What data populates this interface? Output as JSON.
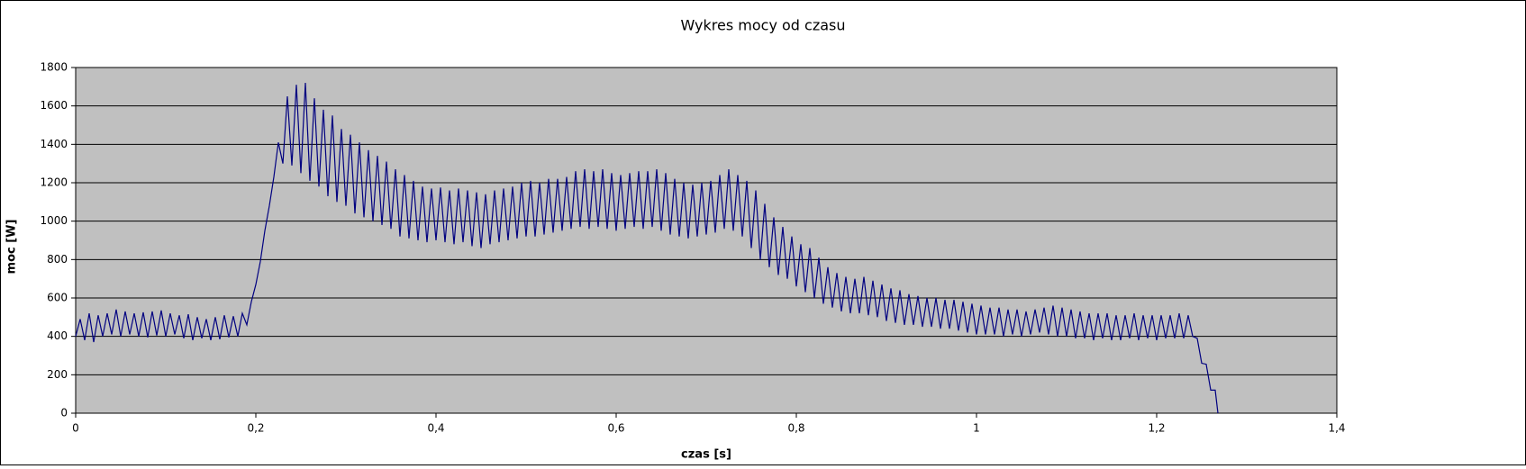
{
  "chart_data": {
    "type": "line",
    "title": "Wykres mocy od czasu",
    "x_label": "czas [s]",
    "y_label": "moc [W]",
    "color": "#000080",
    "grid": true,
    "background": "#c0c0c0",
    "xlim": [
      0,
      1.4
    ],
    "ylim": [
      0,
      1800
    ],
    "xticks": [
      0,
      {
        "value": 0.2,
        "label": "0,2"
      },
      {
        "value": 0.4,
        "label": "0,4"
      },
      {
        "value": 0.6,
        "label": "0,6"
      },
      {
        "value": 0.8,
        "label": "0,8"
      },
      1,
      {
        "value": 1.2,
        "label": "1,2"
      },
      {
        "value": 1.4,
        "label": "1,4"
      }
    ],
    "yticks": [
      0,
      200,
      400,
      600,
      800,
      1000,
      1200,
      1400,
      1600,
      1800
    ],
    "x": [
      0,
      0.005,
      0.01,
      0.015,
      0.02,
      0.025,
      0.03,
      0.035,
      0.04,
      0.045,
      0.05,
      0.055,
      0.06,
      0.065,
      0.07,
      0.075,
      0.08,
      0.085,
      0.09,
      0.095,
      0.1,
      0.105,
      0.11,
      0.115,
      0.12,
      0.125,
      0.13,
      0.135,
      0.14,
      0.145,
      0.15,
      0.155,
      0.16,
      0.165,
      0.17,
      0.175,
      0.18,
      0.185,
      0.19,
      0.195,
      0.2,
      0.205,
      0.21,
      0.215,
      0.22,
      0.225,
      0.23,
      0.235,
      0.24,
      0.245,
      0.25,
      0.255,
      0.26,
      0.265,
      0.27,
      0.275,
      0.28,
      0.285,
      0.29,
      0.295,
      0.3,
      0.305,
      0.31,
      0.315,
      0.32,
      0.325,
      0.33,
      0.335,
      0.34,
      0.345,
      0.35,
      0.355,
      0.36,
      0.365,
      0.37,
      0.375,
      0.38,
      0.385,
      0.39,
      0.395,
      0.4,
      0.405,
      0.41,
      0.415,
      0.42,
      0.425,
      0.43,
      0.435,
      0.44,
      0.445,
      0.45,
      0.455,
      0.46,
      0.465,
      0.47,
      0.475,
      0.48,
      0.485,
      0.49,
      0.495,
      0.5,
      0.505,
      0.51,
      0.515,
      0.52,
      0.525,
      0.53,
      0.535,
      0.54,
      0.545,
      0.55,
      0.555,
      0.56,
      0.565,
      0.57,
      0.575,
      0.58,
      0.585,
      0.59,
      0.595,
      0.6,
      0.605,
      0.61,
      0.615,
      0.62,
      0.625,
      0.63,
      0.635,
      0.64,
      0.645,
      0.65,
      0.655,
      0.66,
      0.665,
      0.67,
      0.675,
      0.68,
      0.685,
      0.69,
      0.695,
      0.7,
      0.705,
      0.71,
      0.715,
      0.72,
      0.725,
      0.73,
      0.735,
      0.74,
      0.745,
      0.75,
      0.755,
      0.76,
      0.765,
      0.77,
      0.775,
      0.78,
      0.785,
      0.79,
      0.795,
      0.8,
      0.805,
      0.81,
      0.815,
      0.82,
      0.825,
      0.83,
      0.835,
      0.84,
      0.845,
      0.85,
      0.855,
      0.86,
      0.865,
      0.87,
      0.875,
      0.88,
      0.885,
      0.89,
      0.895,
      0.9,
      0.905,
      0.91,
      0.915,
      0.92,
      0.925,
      0.93,
      0.935,
      0.94,
      0.945,
      0.95,
      0.955,
      0.96,
      0.965,
      0.97,
      0.975,
      0.98,
      0.985,
      0.99,
      0.995,
      1,
      1.005,
      1.01,
      1.015,
      1.02,
      1.025,
      1.03,
      1.035,
      1.04,
      1.045,
      1.05,
      1.055,
      1.06,
      1.065,
      1.07,
      1.075,
      1.08,
      1.085,
      1.09,
      1.095,
      1.1,
      1.105,
      1.11,
      1.115,
      1.12,
      1.125,
      1.13,
      1.135,
      1.14,
      1.145,
      1.15,
      1.155,
      1.16,
      1.165,
      1.17,
      1.175,
      1.18,
      1.185,
      1.19,
      1.195,
      1.2,
      1.205,
      1.21,
      1.215,
      1.22,
      1.225,
      1.23,
      1.235,
      1.24,
      1.245,
      1.25,
      1.255,
      1.26,
      1.265,
      1.268
    ],
    "values": [
      400,
      490,
      380,
      520,
      370,
      510,
      400,
      520,
      410,
      540,
      400,
      530,
      410,
      520,
      400,
      525,
      395,
      530,
      405,
      535,
      400,
      520,
      410,
      510,
      390,
      515,
      380,
      500,
      390,
      490,
      380,
      500,
      385,
      510,
      395,
      505,
      400,
      520,
      460,
      580,
      670,
      790,
      950,
      1080,
      1230,
      1410,
      1300,
      1650,
      1290,
      1710,
      1250,
      1720,
      1210,
      1640,
      1180,
      1580,
      1130,
      1550,
      1100,
      1480,
      1080,
      1450,
      1040,
      1410,
      1020,
      1370,
      1000,
      1340,
      980,
      1310,
      960,
      1270,
      920,
      1240,
      910,
      1210,
      900,
      1180,
      890,
      1170,
      900,
      1175,
      890,
      1160,
      880,
      1170,
      890,
      1160,
      870,
      1150,
      860,
      1140,
      880,
      1160,
      890,
      1170,
      900,
      1180,
      910,
      1200,
      920,
      1210,
      920,
      1200,
      930,
      1220,
      940,
      1220,
      950,
      1230,
      960,
      1260,
      970,
      1270,
      960,
      1260,
      970,
      1270,
      960,
      1250,
      950,
      1240,
      960,
      1250,
      970,
      1260,
      960,
      1260,
      970,
      1270,
      950,
      1250,
      930,
      1220,
      920,
      1200,
      910,
      1190,
      920,
      1200,
      930,
      1210,
      940,
      1240,
      960,
      1270,
      950,
      1240,
      920,
      1210,
      860,
      1160,
      800,
      1090,
      760,
      1020,
      720,
      970,
      700,
      920,
      660,
      880,
      630,
      860,
      600,
      810,
      570,
      760,
      550,
      730,
      530,
      710,
      520,
      700,
      520,
      710,
      510,
      690,
      500,
      670,
      480,
      650,
      470,
      640,
      460,
      620,
      460,
      610,
      450,
      600,
      450,
      600,
      440,
      590,
      440,
      590,
      430,
      580,
      420,
      570,
      410,
      560,
      410,
      550,
      410,
      550,
      400,
      540,
      410,
      540,
      400,
      530,
      410,
      540,
      420,
      550,
      410,
      560,
      400,
      550,
      400,
      540,
      390,
      530,
      390,
      520,
      380,
      520,
      390,
      520,
      380,
      510,
      380,
      510,
      390,
      520,
      380,
      510,
      390,
      510,
      380,
      510,
      390,
      510,
      390,
      520,
      390,
      510,
      400,
      390,
      260,
      255,
      120,
      120,
      0
    ]
  }
}
